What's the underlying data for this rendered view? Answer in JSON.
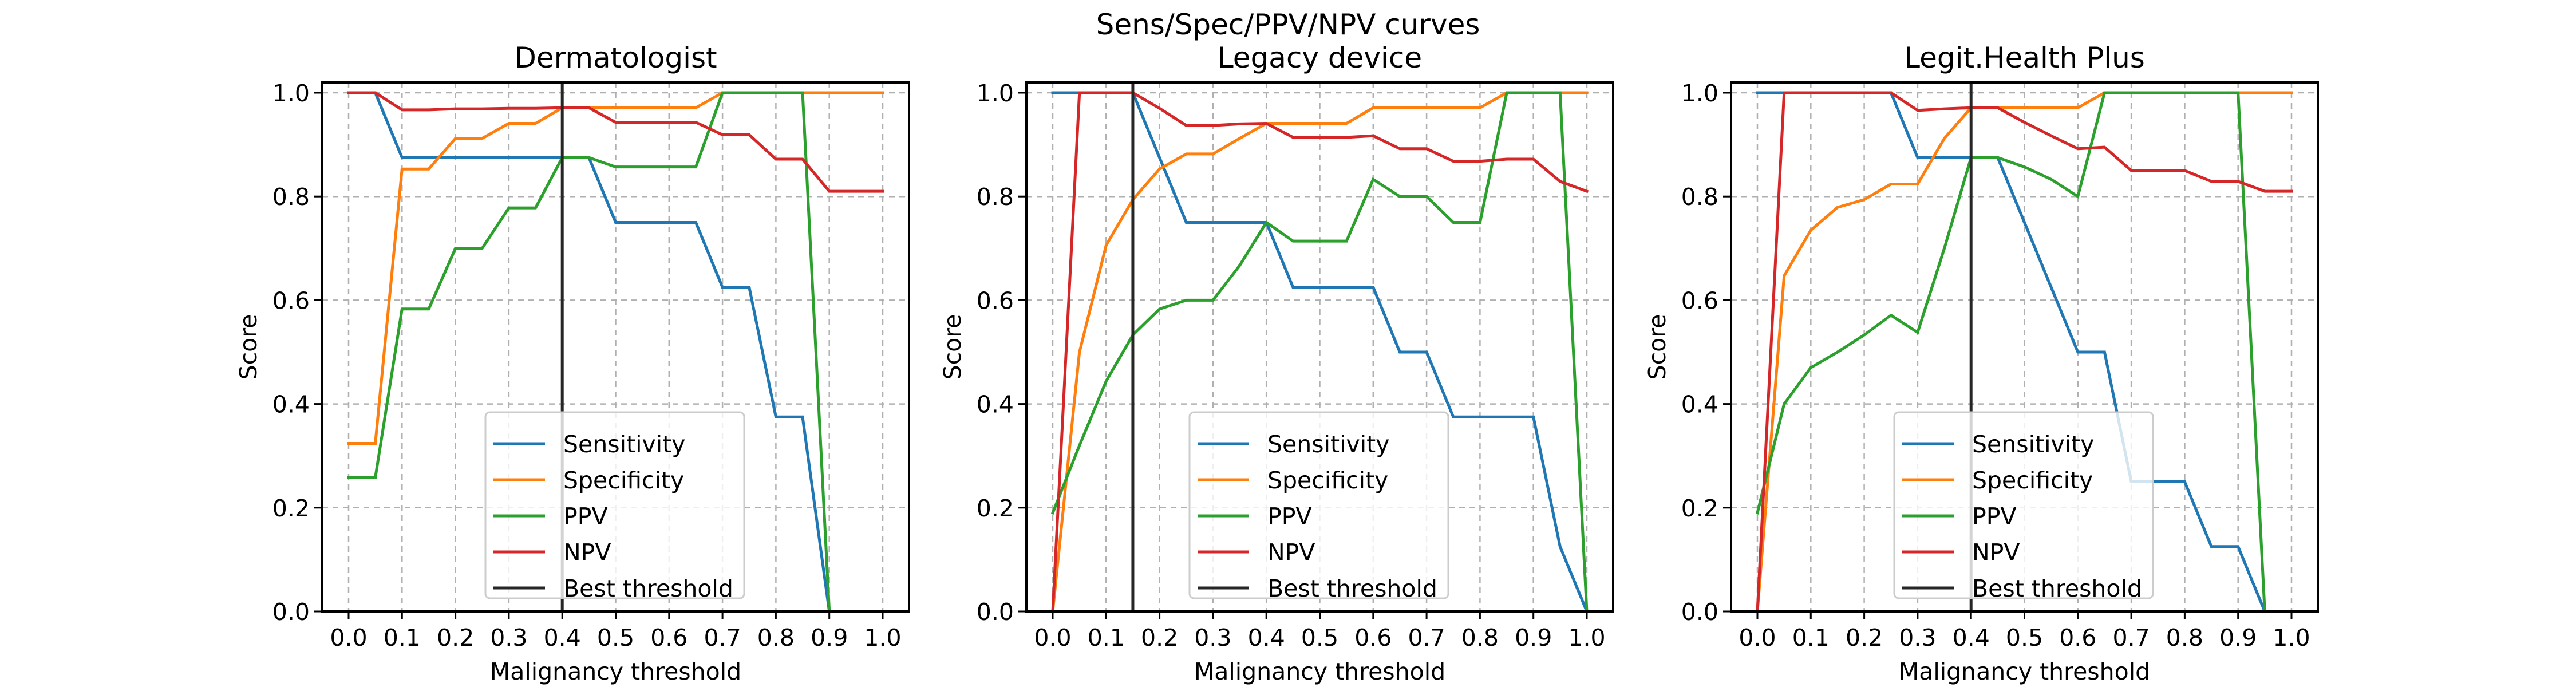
{
  "chart_data": {
    "type": "line",
    "suptitle": "Sens/Spec/PPV/NPV curves",
    "xlabel": "Malignancy threshold",
    "ylabel": "Score",
    "xlim": [
      -0.05,
      1.05
    ],
    "ylim": [
      0.0,
      1.02
    ],
    "x_ticks": [
      "0.0",
      "0.1",
      "0.2",
      "0.3",
      "0.4",
      "0.5",
      "0.6",
      "0.7",
      "0.8",
      "0.9",
      "1.0"
    ],
    "y_ticks": [
      "0.0",
      "0.2",
      "0.4",
      "0.6",
      "0.8",
      "1.0"
    ],
    "grid": true,
    "grid_style": "dashed",
    "legend_position": "lower-center",
    "legend": [
      "Sensitivity",
      "Specificity",
      "PPV",
      "NPV",
      "Best threshold"
    ],
    "colors": {
      "Sensitivity": "#1f77b4",
      "Specificity": "#ff7f0e",
      "PPV": "#2ca02c",
      "NPV": "#d62728",
      "Best threshold": "#262626",
      "grid": "#b0b0b0"
    },
    "x": [
      0.0,
      0.05,
      0.1,
      0.15,
      0.2,
      0.25,
      0.3,
      0.35,
      0.4,
      0.45,
      0.5,
      0.55,
      0.6,
      0.65,
      0.7,
      0.75,
      0.8,
      0.85,
      0.9,
      0.95,
      1.0
    ],
    "panels": [
      {
        "title": "Dermatologist",
        "best_threshold": 0.4,
        "series": [
          {
            "name": "Sensitivity",
            "values": [
              1.0,
              1.0,
              0.875,
              0.875,
              0.875,
              0.875,
              0.875,
              0.875,
              0.875,
              0.875,
              0.75,
              0.75,
              0.75,
              0.75,
              0.625,
              0.625,
              0.375,
              0.375,
              0.0,
              0.0,
              0.0
            ]
          },
          {
            "name": "Specificity",
            "values": [
              0.324,
              0.324,
              0.853,
              0.853,
              0.912,
              0.912,
              0.941,
              0.941,
              0.971,
              0.971,
              0.971,
              0.971,
              0.971,
              0.971,
              1.0,
              1.0,
              1.0,
              1.0,
              1.0,
              1.0,
              1.0
            ]
          },
          {
            "name": "PPV",
            "values": [
              0.258,
              0.258,
              0.583,
              0.583,
              0.7,
              0.7,
              0.778,
              0.778,
              0.875,
              0.875,
              0.857,
              0.857,
              0.857,
              0.857,
              1.0,
              1.0,
              1.0,
              1.0,
              0.0,
              0.0,
              0.0
            ]
          },
          {
            "name": "NPV",
            "values": [
              1.0,
              1.0,
              0.967,
              0.967,
              0.969,
              0.969,
              0.97,
              0.97,
              0.971,
              0.971,
              0.943,
              0.943,
              0.943,
              0.943,
              0.919,
              0.919,
              0.872,
              0.872,
              0.81,
              0.81,
              0.81
            ]
          }
        ]
      },
      {
        "title": "Legacy device",
        "best_threshold": 0.15,
        "series": [
          {
            "name": "Sensitivity",
            "values": [
              1.0,
              1.0,
              1.0,
              1.0,
              0.875,
              0.75,
              0.75,
              0.75,
              0.75,
              0.625,
              0.625,
              0.625,
              0.625,
              0.5,
              0.5,
              0.375,
              0.375,
              0.375,
              0.375,
              0.125,
              0.0
            ]
          },
          {
            "name": "Specificity",
            "values": [
              0.0,
              0.5,
              0.706,
              0.794,
              0.853,
              0.882,
              0.882,
              0.912,
              0.941,
              0.941,
              0.941,
              0.941,
              0.971,
              0.971,
              0.971,
              0.971,
              0.971,
              1.0,
              1.0,
              1.0,
              1.0
            ]
          },
          {
            "name": "PPV",
            "values": [
              0.19,
              0.32,
              0.444,
              0.533,
              0.583,
              0.6,
              0.6,
              0.667,
              0.75,
              0.714,
              0.714,
              0.714,
              0.833,
              0.8,
              0.8,
              0.75,
              0.75,
              1.0,
              1.0,
              1.0,
              0.0
            ]
          },
          {
            "name": "NPV",
            "values": [
              0.0,
              1.0,
              1.0,
              1.0,
              0.97,
              0.937,
              0.937,
              0.94,
              0.941,
              0.914,
              0.914,
              0.914,
              0.917,
              0.892,
              0.892,
              0.868,
              0.868,
              0.872,
              0.872,
              0.829,
              0.81
            ]
          }
        ]
      },
      {
        "title": "Legit.Health Plus",
        "best_threshold": 0.4,
        "series": [
          {
            "name": "Sensitivity",
            "values": [
              1.0,
              1.0,
              1.0,
              1.0,
              1.0,
              1.0,
              0.875,
              0.875,
              0.875,
              0.875,
              0.75,
              0.625,
              0.5,
              0.5,
              0.25,
              0.25,
              0.25,
              0.125,
              0.125,
              0.0,
              0.0
            ]
          },
          {
            "name": "Specificity",
            "values": [
              0.0,
              0.647,
              0.735,
              0.779,
              0.794,
              0.824,
              0.824,
              0.912,
              0.971,
              0.971,
              0.971,
              0.971,
              0.971,
              1.0,
              1.0,
              1.0,
              1.0,
              1.0,
              1.0,
              1.0,
              1.0
            ]
          },
          {
            "name": "PPV",
            "values": [
              0.19,
              0.4,
              0.47,
              0.5,
              0.533,
              0.571,
              0.538,
              0.7,
              0.875,
              0.875,
              0.857,
              0.833,
              0.8,
              1.0,
              1.0,
              1.0,
              1.0,
              1.0,
              1.0,
              0.0,
              0.0
            ]
          },
          {
            "name": "NPV",
            "values": [
              0.0,
              1.0,
              1.0,
              1.0,
              1.0,
              1.0,
              0.966,
              0.969,
              0.971,
              0.971,
              0.943,
              0.917,
              0.892,
              0.895,
              0.85,
              0.85,
              0.85,
              0.829,
              0.829,
              0.81,
              0.81
            ]
          }
        ]
      }
    ]
  }
}
